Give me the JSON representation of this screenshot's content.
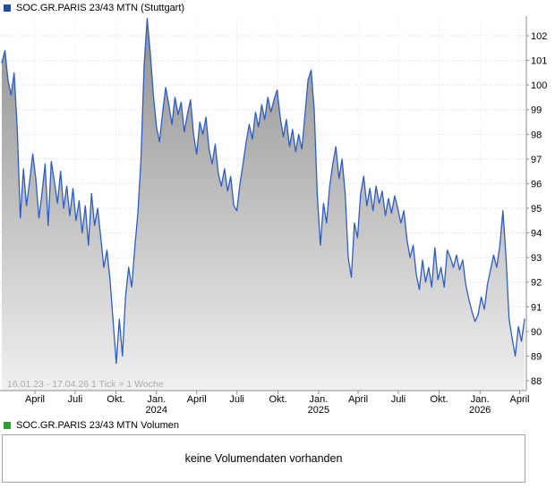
{
  "header": {
    "title": "SOC.GR.PARIS 23/43 MTN (Stuttgart)",
    "marker_color": "#1c4fa1"
  },
  "volume": {
    "title": "SOC.GR.PARIS 23/43 MTN Volumen",
    "marker_color": "#2f9e33",
    "message": "keine Volumendaten vorhanden"
  },
  "chart_data": {
    "type": "area",
    "title": "SOC.GR.PARIS 23/43 MTN (Stuttgart)",
    "series_name": "SOC.GR.PARIS 23/43 MTN",
    "period_label": "16.01.23 - 17.04.26",
    "tick_label": "1 Tick = 1 Woche",
    "interval": "weekly",
    "xlabel": "",
    "ylabel": "",
    "ylim": [
      87.6,
      102.9
    ],
    "y_ticks": [
      88,
      89,
      90,
      91,
      92,
      93,
      94,
      95,
      96,
      97,
      98,
      99,
      100,
      101,
      102
    ],
    "grid": true,
    "legend_position": "none",
    "line_color": "#2d5cc8",
    "fill_top": "#909090",
    "fill_bottom": "#f0f0f0",
    "watermark": "‹",
    "x_ticks": [
      {
        "label": "April",
        "week": 10.7
      },
      {
        "label": "Juli",
        "week": 23.7
      },
      {
        "label": "Okt.",
        "week": 36.9
      },
      {
        "label": "Jan.",
        "year": "2024",
        "week": 50
      },
      {
        "label": "April",
        "week": 63
      },
      {
        "label": "Juli",
        "week": 76
      },
      {
        "label": "Okt.",
        "week": 89.3
      },
      {
        "label": "Jan.",
        "year": "2025",
        "week": 102.4
      },
      {
        "label": "April",
        "week": 115.2
      },
      {
        "label": "Juli",
        "week": 128.2
      },
      {
        "label": "Okt.",
        "week": 141.4
      },
      {
        "label": "Jan.",
        "year": "2026",
        "week": 154.6
      },
      {
        "label": "April",
        "week": 167.4
      }
    ],
    "values": [
      100.9,
      101.4,
      100.2,
      99.6,
      100.5,
      98.2,
      94.6,
      96.6,
      95.1,
      96.1,
      97.2,
      96.2,
      94.6,
      95.6,
      96.8,
      94.3,
      96.9,
      96.1,
      95.2,
      96.5,
      95.0,
      95.9,
      94.7,
      95.8,
      94.5,
      95.3,
      94.0,
      95.1,
      93.5,
      95.6,
      94.3,
      95.0,
      93.8,
      92.6,
      93.3,
      92.1,
      90.4,
      88.7,
      90.5,
      89.0,
      91.4,
      92.6,
      91.8,
      93.4,
      94.8,
      97.0,
      100.8,
      102.7,
      101.3,
      99.6,
      98.3,
      97.7,
      98.9,
      99.9,
      99.2,
      98.4,
      99.5,
      98.8,
      99.3,
      98.1,
      98.8,
      99.4,
      98.0,
      97.2,
      98.5,
      98.0,
      98.7,
      97.4,
      96.8,
      97.6,
      96.4,
      95.9,
      96.6,
      95.7,
      96.3,
      95.1,
      94.9,
      96.0,
      96.8,
      97.7,
      98.4,
      97.8,
      98.9,
      98.3,
      99.2,
      98.6,
      99.5,
      98.9,
      99.4,
      99.8,
      98.7,
      97.9,
      98.6,
      97.5,
      98.2,
      97.3,
      98.0,
      97.4,
      98.8,
      100.2,
      100.6,
      99.0,
      95.5,
      93.5,
      95.2,
      94.4,
      95.9,
      96.8,
      97.5,
      96.2,
      97.0,
      95.6,
      93.0,
      92.2,
      94.4,
      93.8,
      95.6,
      96.3,
      95.1,
      95.8,
      94.9,
      95.9,
      95.2,
      95.7,
      94.7,
      95.4,
      94.8,
      95.5,
      95.0,
      94.4,
      94.9,
      93.7,
      93.0,
      93.5,
      92.3,
      91.7,
      92.9,
      92.0,
      92.6,
      91.8,
      93.4,
      92.1,
      92.6,
      91.8,
      93.3,
      93.0,
      92.6,
      93.1,
      92.5,
      92.9,
      91.9,
      91.3,
      90.8,
      90.4,
      90.7,
      91.4,
      90.9,
      91.9,
      92.5,
      93.1,
      92.6,
      93.5,
      94.9,
      93.0,
      90.5,
      89.7,
      89.0,
      90.2,
      89.6,
      90.5
    ]
  }
}
